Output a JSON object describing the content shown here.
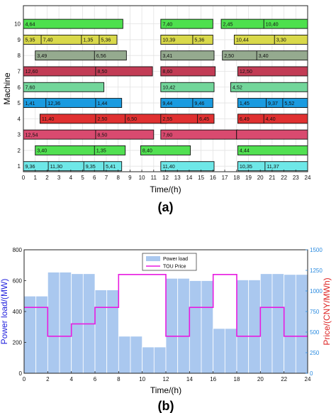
{
  "chart_data": [
    {
      "type": "gantt",
      "panel_label": "(a)",
      "xlabel": "Time/(h)",
      "ylabel": "Machine",
      "xlim": [
        0,
        24
      ],
      "x_ticks": [
        "0",
        "1",
        "2",
        "3",
        "4",
        "5",
        "6",
        "7",
        "8",
        "9",
        "10",
        "11",
        "12",
        "13",
        "14",
        "15",
        "16",
        "17",
        "18",
        "19",
        "20",
        "21",
        "22",
        "23",
        "24"
      ],
      "y_ticks": [
        "1",
        "2",
        "3",
        "4",
        "5",
        "6",
        "7",
        "8",
        "9",
        "10"
      ],
      "grid": true,
      "machine_colors": {
        "1": "#6ee7e7",
        "2": "#52e052",
        "3": "#d94a6f",
        "4": "#e03030",
        "5": "#1a9be0",
        "6": "#72d69a",
        "7": "#c23c55",
        "8": "#95aa8f",
        "9": "#d9d94a",
        "10": "#4ee04e"
      },
      "bars": [
        {
          "machine": 10,
          "start": 0,
          "end": 8.4,
          "tasks": [
            {
              "from": 0,
              "label": "4,64"
            }
          ]
        },
        {
          "machine": 10,
          "start": 11.6,
          "end": 16.0,
          "tasks": [
            {
              "from": 11.6,
              "label": "7,40"
            }
          ]
        },
        {
          "machine": 10,
          "start": 16.7,
          "end": 24.0,
          "tasks": [
            {
              "from": 16.7,
              "label": "2,45"
            },
            {
              "from": 20.3,
              "label": "10,40"
            }
          ]
        },
        {
          "machine": 9,
          "start": 0,
          "end": 7.9,
          "tasks": [
            {
              "from": 0,
              "label": "5,35"
            },
            {
              "from": 1.5,
              "label": "7,40"
            },
            {
              "from": 4.9,
              "label": "1,35"
            },
            {
              "from": 6.4,
              "label": "5,36"
            }
          ]
        },
        {
          "machine": 9,
          "start": 11.6,
          "end": 16.0,
          "tasks": [
            {
              "from": 11.6,
              "label": "10,39"
            },
            {
              "from": 14.3,
              "label": "5,36"
            }
          ]
        },
        {
          "machine": 9,
          "start": 17.8,
          "end": 24.0,
          "tasks": [
            {
              "from": 17.8,
              "label": "10,44"
            },
            {
              "from": 21.2,
              "label": "3,30"
            }
          ]
        },
        {
          "machine": 8,
          "start": 1.0,
          "end": 8.7,
          "tasks": [
            {
              "from": 1.0,
              "label": "3,49"
            },
            {
              "from": 6.0,
              "label": "6,56"
            }
          ]
        },
        {
          "machine": 8,
          "start": 11.6,
          "end": 16.1,
          "tasks": [
            {
              "from": 11.6,
              "label": "3,41"
            }
          ]
        },
        {
          "machine": 8,
          "start": 16.8,
          "end": 24.0,
          "tasks": [
            {
              "from": 16.8,
              "label": "2,50"
            },
            {
              "from": 19.7,
              "label": "3,40"
            }
          ]
        },
        {
          "machine": 7,
          "start": 0,
          "end": 10.9,
          "tasks": [
            {
              "from": 0,
              "label": "12,60"
            },
            {
              "from": 6.1,
              "label": "8,50"
            }
          ]
        },
        {
          "machine": 7,
          "start": 11.6,
          "end": 16.2,
          "tasks": [
            {
              "from": 11.6,
              "label": "8,60"
            }
          ]
        },
        {
          "machine": 7,
          "start": 18.1,
          "end": 24.0,
          "tasks": [
            {
              "from": 18.1,
              "label": "12,50"
            }
          ]
        },
        {
          "machine": 6,
          "start": 0,
          "end": 6.8,
          "tasks": [
            {
              "from": 0,
              "label": "7,60"
            }
          ]
        },
        {
          "machine": 6,
          "start": 11.6,
          "end": 16.1,
          "tasks": [
            {
              "from": 11.6,
              "label": "10,42"
            }
          ]
        },
        {
          "machine": 6,
          "start": 17.5,
          "end": 24.0,
          "tasks": [
            {
              "from": 17.5,
              "label": "4,52"
            }
          ]
        },
        {
          "machine": 5,
          "start": 0,
          "end": 8.3,
          "tasks": [
            {
              "from": 0,
              "label": "1,41"
            },
            {
              "from": 1.9,
              "label": "12,36"
            },
            {
              "from": 6.1,
              "label": "1,44"
            }
          ]
        },
        {
          "machine": 5,
          "start": 11.6,
          "end": 16.0,
          "tasks": [
            {
              "from": 11.6,
              "label": "9,44"
            },
            {
              "from": 14.3,
              "label": "9,46"
            }
          ]
        },
        {
          "machine": 5,
          "start": 18.1,
          "end": 24.0,
          "tasks": [
            {
              "from": 18.1,
              "label": "1,45"
            },
            {
              "from": 20.5,
              "label": "9,37"
            },
            {
              "from": 21.9,
              "label": "5,52"
            }
          ]
        },
        {
          "machine": 4,
          "start": 1.4,
          "end": 12.1,
          "tasks": [
            {
              "from": 1.4,
              "label": "11,40"
            },
            {
              "from": 6.1,
              "label": "2,50"
            },
            {
              "from": 8.6,
              "label": "6,50"
            }
          ]
        },
        {
          "machine": 4,
          "start": 11.6,
          "end": 16.1,
          "tasks": [
            {
              "from": 11.6,
              "label": "2,55"
            },
            {
              "from": 14.7,
              "label": "6,45"
            }
          ]
        },
        {
          "machine": 4,
          "start": 18.1,
          "end": 24.0,
          "tasks": [
            {
              "from": 18.1,
              "label": "6,49"
            },
            {
              "from": 20.3,
              "label": "4,40"
            }
          ]
        },
        {
          "machine": 3,
          "start": 0,
          "end": 11.0,
          "tasks": [
            {
              "from": 0,
              "label": "12,54"
            },
            {
              "from": 6.1,
              "label": "8,50"
            }
          ]
        },
        {
          "machine": 3,
          "start": 11.6,
          "end": 18.1,
          "tasks": [
            {
              "from": 11.6,
              "label": "7,60"
            },
            {
              "from": 18.0,
              "label": "11,53"
            }
          ]
        },
        {
          "machine": 3,
          "start": 18.0,
          "end": 24.0,
          "tasks": []
        },
        {
          "machine": 2,
          "start": 1.0,
          "end": 8.6,
          "tasks": [
            {
              "from": 1.0,
              "label": "3,40"
            },
            {
              "from": 6.0,
              "label": "1,35"
            }
          ]
        },
        {
          "machine": 2,
          "start": 9.9,
          "end": 14.1,
          "tasks": [
            {
              "from": 9.9,
              "label": "8,40"
            }
          ]
        },
        {
          "machine": 2,
          "start": 18.1,
          "end": 24.0,
          "tasks": [
            {
              "from": 18.1,
              "label": "4,44"
            }
          ]
        },
        {
          "machine": 1,
          "start": 0,
          "end": 8.3,
          "tasks": [
            {
              "from": 0,
              "label": "9,36"
            },
            {
              "from": 2.1,
              "label": "11,30"
            },
            {
              "from": 5.1,
              "label": "9,35"
            },
            {
              "from": 6.8,
              "label": "5,41"
            }
          ]
        },
        {
          "machine": 1,
          "start": 11.6,
          "end": 16.1,
          "tasks": [
            {
              "from": 11.6,
              "label": "11,40"
            }
          ]
        },
        {
          "machine": 1,
          "start": 18.1,
          "end": 24.0,
          "tasks": [
            {
              "from": 18.1,
              "label": "10,35"
            },
            {
              "from": 20.4,
              "label": "11,37"
            }
          ]
        }
      ]
    },
    {
      "type": "bar+line",
      "panel_label": "(b)",
      "xlabel": "Time/(h)",
      "ylabel_left": "Power load/(MW)",
      "ylabel_right": "Price/(CNY/MWh)",
      "xlim": [
        0,
        24
      ],
      "ylim_left": [
        0,
        800
      ],
      "ylim_right": [
        0,
        1500
      ],
      "x_ticks": [
        "0",
        "2",
        "4",
        "6",
        "8",
        "10",
        "12",
        "14",
        "16",
        "18",
        "20",
        "22",
        "24"
      ],
      "y_ticks_left": [
        "0",
        "200",
        "400",
        "600",
        "800"
      ],
      "y_ticks_right": [
        "0",
        "250",
        "500",
        "750",
        "1000",
        "1250",
        "1500"
      ],
      "legend": [
        "Power load",
        "TOU Price"
      ],
      "legend_position": "top-center",
      "colors": {
        "bar": "#aac8ef",
        "price": "#e81ce0",
        "left_axis": "#2222dd",
        "right_axis": "#dd2222",
        "right_ticks": "#2a8be0"
      },
      "power_load": {
        "name": "Power load",
        "hours": [
          0,
          1,
          2,
          3,
          4,
          5,
          6,
          7,
          8,
          9,
          10,
          11,
          12,
          13,
          14,
          15,
          16,
          17,
          18,
          19,
          20,
          21,
          22,
          23
        ],
        "values": [
          500,
          500,
          655,
          655,
          645,
          645,
          540,
          540,
          240,
          240,
          170,
          170,
          615,
          615,
          600,
          600,
          290,
          290,
          605,
          605,
          645,
          645,
          640,
          640
        ]
      },
      "tou_price": {
        "name": "TOU Price",
        "x": [
          0,
          2,
          2,
          4,
          4,
          6,
          6,
          8,
          8,
          12,
          12,
          14,
          14,
          16,
          16,
          18,
          18,
          20,
          20,
          22,
          22,
          24
        ],
        "values": [
          800,
          800,
          450,
          450,
          600,
          600,
          800,
          800,
          1200,
          1200,
          450,
          450,
          800,
          800,
          1200,
          1200,
          450,
          450,
          800,
          800,
          450,
          450
        ]
      }
    }
  ]
}
